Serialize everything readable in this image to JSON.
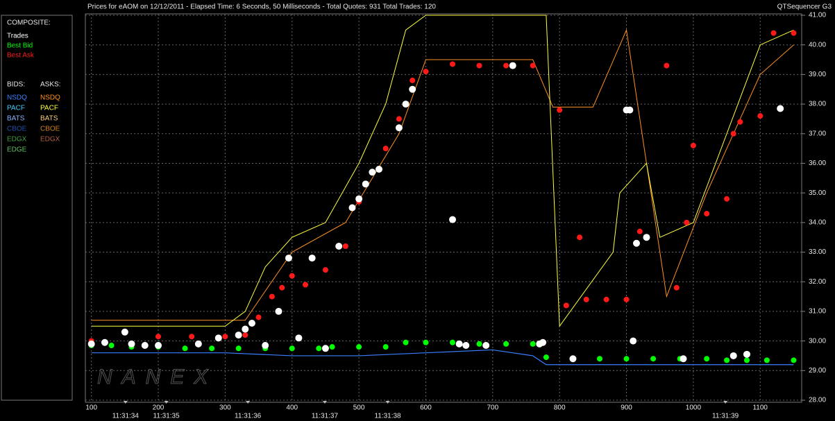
{
  "chart_data": {
    "type": "scatter",
    "title": "Prices for  eAOM  on  12/12/2011  -  Elapsed Time: 6 Seconds, 50 Milliseconds  -  Total Quotes: 931  Total Trades: 120",
    "brand": "QTSequencer G3",
    "watermark": "NANEX",
    "composite_label": "COMPOSITE:",
    "bids_label": "BIDS:",
    "asks_label": "ASKS:",
    "xlim": [
      91,
      1162
    ],
    "ylim": [
      28,
      41
    ],
    "grid": true,
    "xticks": [
      100,
      200,
      300,
      400,
      500,
      600,
      700,
      800,
      900,
      1000,
      1100
    ],
    "time_ticks": [
      {
        "value": 151,
        "label": "11:31:34"
      },
      {
        "value": 212,
        "label": "11:31:35"
      },
      {
        "value": 334,
        "label": "11:31:36"
      },
      {
        "value": 449,
        "label": "11:31:37"
      },
      {
        "value": 543,
        "label": "11:31:38"
      },
      {
        "value": 1048,
        "label": "11:31:39"
      }
    ],
    "yticks": [
      {
        "value": 28,
        "label": "28.00"
      },
      {
        "value": 29,
        "label": "29.00"
      },
      {
        "value": 30,
        "label": "30.00"
      },
      {
        "value": 31,
        "label": "31.00"
      },
      {
        "value": 32,
        "label": "32.00"
      },
      {
        "value": 33,
        "label": "33.00"
      },
      {
        "value": 34,
        "label": "34.00"
      },
      {
        "value": 35,
        "label": "35.00"
      },
      {
        "value": 36,
        "label": "36.00"
      },
      {
        "value": 37,
        "label": "37.00"
      },
      {
        "value": 38,
        "label": "38.00"
      },
      {
        "value": 39,
        "label": "39.00"
      },
      {
        "value": 40,
        "label": "40.00"
      },
      {
        "value": 41,
        "label": "41.00"
      }
    ],
    "bids": [
      {
        "name": "NSDQ",
        "color": "#3a7fff",
        "x": [
          100,
          200,
          300,
          400,
          500,
          600,
          700,
          760,
          780,
          900,
          1000,
          1150
        ],
        "values": [
          29.6,
          29.6,
          29.6,
          29.5,
          29.5,
          29.6,
          29.7,
          29.5,
          29.2,
          29.2,
          29.2,
          29.2
        ]
      },
      {
        "name": "PACF",
        "color": "#3fd0ff"
      },
      {
        "name": "BATS",
        "color": "#8ab4ff"
      },
      {
        "name": "CBOE",
        "color": "#2050b0"
      },
      {
        "name": "EDGX",
        "color": "#40a040"
      },
      {
        "name": "EDGE",
        "color": "#60c060"
      }
    ],
    "asks": [
      {
        "name": "NSDQ",
        "color": "#ff9020",
        "x": [
          100,
          330,
          400,
          480,
          560,
          600,
          760,
          790,
          850,
          900,
          960,
          1020,
          1100,
          1150
        ],
        "values": [
          30.7,
          30.7,
          33,
          34,
          37,
          39.5,
          39.5,
          37.9,
          37.9,
          40.5,
          31.5,
          35,
          39,
          40
        ]
      },
      {
        "name": "PACF",
        "color": "#ffff40",
        "x": [
          100,
          300,
          330,
          360,
          400,
          450,
          500,
          540,
          570,
          600,
          780,
          800,
          880,
          890,
          930,
          950,
          1000,
          1050,
          1100,
          1150
        ],
        "values": [
          30.5,
          30.5,
          31,
          32.5,
          33.5,
          34,
          36,
          38,
          40.5,
          41,
          41,
          30.5,
          33,
          35,
          36,
          33.5,
          34,
          37,
          40,
          40.5
        ]
      },
      {
        "name": "BATS",
        "color": "#ffd080"
      },
      {
        "name": "CBOE",
        "color": "#d08020"
      },
      {
        "name": "EDGX",
        "color": "#b06040"
      }
    ],
    "series": [
      {
        "name": "Trades",
        "color": "#ffffff",
        "x": [
          100,
          120,
          150,
          160,
          180,
          200,
          260,
          290,
          320,
          330,
          340,
          360,
          380,
          395,
          410,
          430,
          450,
          470,
          490,
          500,
          510,
          520,
          530,
          560,
          570,
          580,
          640,
          650,
          660,
          690,
          730,
          770,
          775,
          820,
          900,
          905,
          910,
          915,
          930,
          985,
          1060,
          1080,
          1130
        ],
        "values": [
          29.9,
          29.95,
          30.3,
          29.9,
          29.85,
          29.85,
          29.9,
          30.1,
          30.2,
          30.4,
          30.6,
          29.85,
          31.0,
          32.8,
          30.1,
          32.8,
          29.75,
          33.2,
          34.5,
          34.8,
          35.3,
          35.7,
          35.8,
          37.2,
          38.0,
          38.5,
          34.1,
          29.9,
          29.85,
          29.85,
          39.3,
          29.9,
          29.95,
          29.4,
          37.8,
          37.8,
          30.0,
          33.3,
          33.5,
          29.4,
          29.5,
          29.55,
          37.85
        ]
      },
      {
        "name": "Best Bid",
        "color": "#00ff00",
        "x": [
          100,
          130,
          160,
          200,
          240,
          280,
          320,
          360,
          400,
          440,
          460,
          500,
          540,
          570,
          600,
          640,
          680,
          720,
          760,
          780,
          820,
          860,
          900,
          940,
          980,
          1020,
          1050,
          1080,
          1110,
          1150
        ],
        "values": [
          29.85,
          29.85,
          29.8,
          29.8,
          29.75,
          29.75,
          29.75,
          29.75,
          29.75,
          29.75,
          29.8,
          29.8,
          29.8,
          29.95,
          29.95,
          29.95,
          29.9,
          29.9,
          29.9,
          29.45,
          29.4,
          29.4,
          29.4,
          29.4,
          29.4,
          29.4,
          29.35,
          29.35,
          29.35,
          29.35
        ]
      },
      {
        "name": "Best Ask",
        "color": "#ff1a1a",
        "x": [
          100,
          150,
          200,
          250,
          300,
          330,
          350,
          370,
          385,
          400,
          420,
          450,
          480,
          500,
          520,
          540,
          560,
          580,
          600,
          640,
          680,
          720,
          760,
          800,
          810,
          830,
          840,
          870,
          900,
          920,
          960,
          975,
          990,
          1000,
          1020,
          1050,
          1060,
          1070,
          1100,
          1120,
          1150
        ],
        "values": [
          30.0,
          30.3,
          30.15,
          30.15,
          30.15,
          30.2,
          30.8,
          31.5,
          31.8,
          32.2,
          31.9,
          32.4,
          33.2,
          34.7,
          35.7,
          36.5,
          37.5,
          38.8,
          39.1,
          39.35,
          39.3,
          39.3,
          39.3,
          37.8,
          31.2,
          33.5,
          31.4,
          31.4,
          31.4,
          33.7,
          39.3,
          31.8,
          34.0,
          36.6,
          34.3,
          34.8,
          37.0,
          37.4,
          37.6,
          40.4,
          40.4
        ]
      }
    ]
  }
}
